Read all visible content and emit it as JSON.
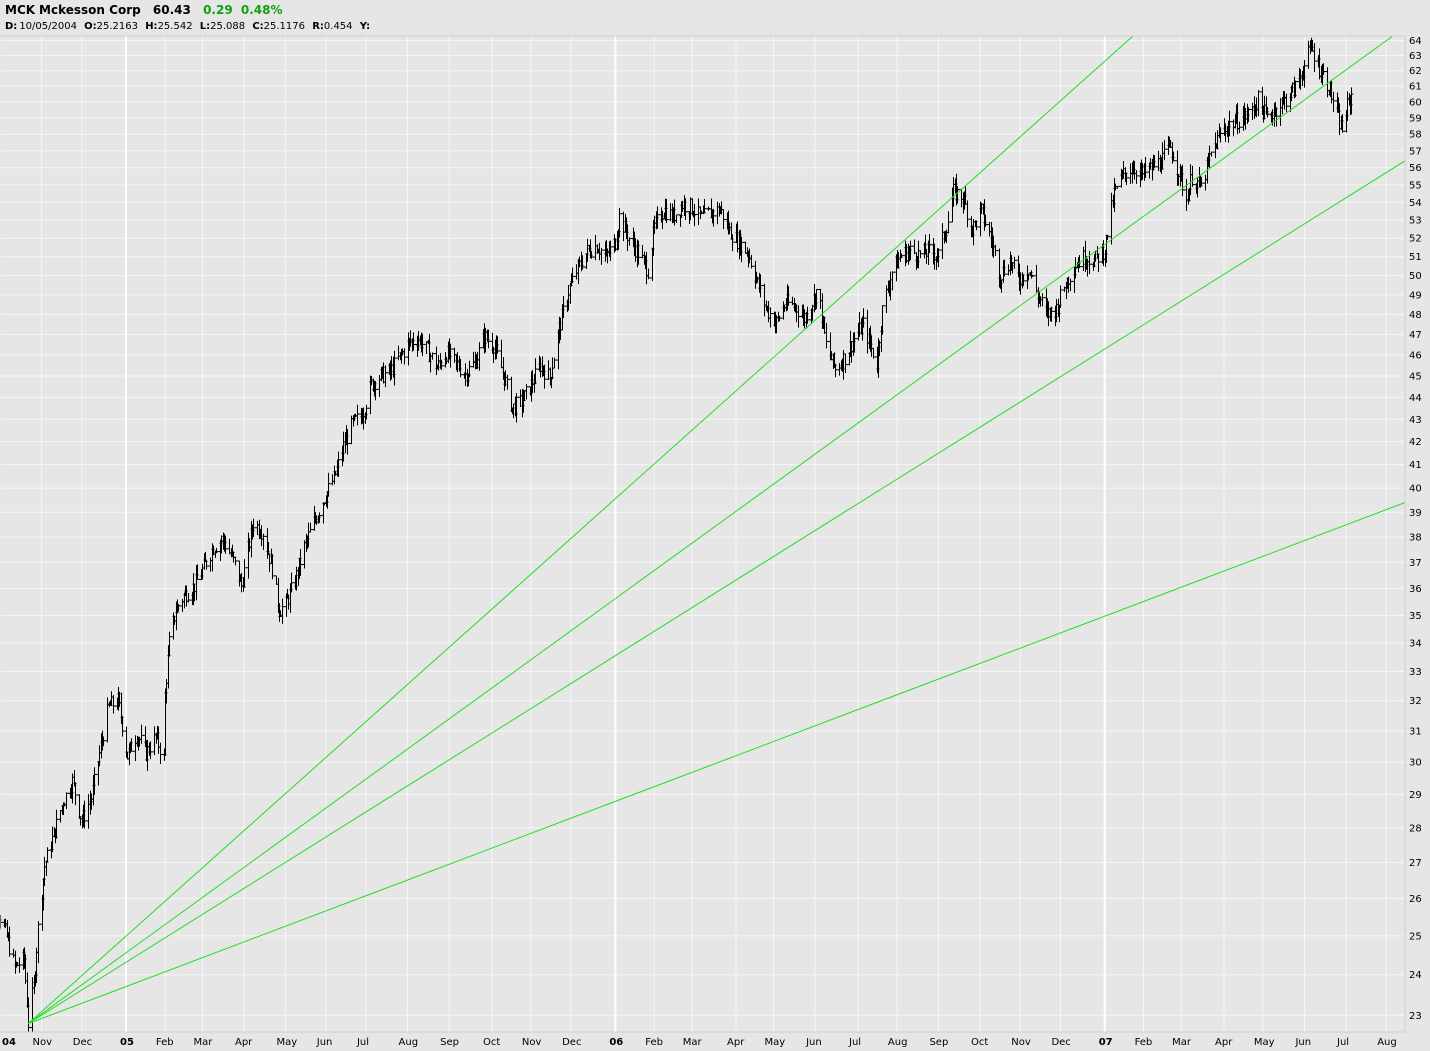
{
  "header": {
    "symbol": "MCK",
    "name": "Mckesson Corp",
    "last": "60.43",
    "change": "0.29",
    "change_pct": "0.48%",
    "change_color": "#12a012",
    "d_label": "D:",
    "date": "10/05/2004",
    "o_label": "O:",
    "open": "25.2163",
    "h_label": "H:",
    "high": "25.542",
    "l_label": "L:",
    "low": "25.088",
    "c_label": "C:",
    "close": "25.1176",
    "r_label": "R:",
    "range": "0.454",
    "y_label": "Y:"
  },
  "chart_data": {
    "type": "bar",
    "style": "ohlc",
    "log_scale": true,
    "ylim": [
      22.6,
      64.3
    ],
    "xlim": [
      "2004-10-01",
      "2007-08-15"
    ],
    "y_ticks": [
      23,
      24,
      25,
      26,
      27,
      28,
      29,
      30,
      31,
      32,
      33,
      34,
      35,
      36,
      37,
      38,
      39,
      40,
      41,
      42,
      43,
      44,
      45,
      46,
      47,
      48,
      49,
      50,
      51,
      52,
      53,
      54,
      55,
      56,
      57,
      58,
      59,
      60,
      61,
      62,
      63,
      64
    ],
    "x_ticks": [
      {
        "label": "04",
        "date": "2004-10-01",
        "year": true
      },
      {
        "label": "Nov",
        "date": "2004-11-01"
      },
      {
        "label": "Dec",
        "date": "2004-12-01"
      },
      {
        "label": "05",
        "date": "2005-01-03",
        "year": true
      },
      {
        "label": "Feb",
        "date": "2005-02-01"
      },
      {
        "label": "Mar",
        "date": "2005-03-01"
      },
      {
        "label": "Apr",
        "date": "2005-04-01"
      },
      {
        "label": "May",
        "date": "2005-05-02"
      },
      {
        "label": "Jun",
        "date": "2005-06-01"
      },
      {
        "label": "Jul",
        "date": "2005-07-01"
      },
      {
        "label": "Aug",
        "date": "2005-08-01"
      },
      {
        "label": "Sep",
        "date": "2005-09-01"
      },
      {
        "label": "Oct",
        "date": "2005-10-03"
      },
      {
        "label": "Nov",
        "date": "2005-11-01"
      },
      {
        "label": "Dec",
        "date": "2005-12-01"
      },
      {
        "label": "06",
        "date": "2006-01-03",
        "year": true
      },
      {
        "label": "Feb",
        "date": "2006-02-01"
      },
      {
        "label": "Mar",
        "date": "2006-03-01"
      },
      {
        "label": "Apr",
        "date": "2006-04-03"
      },
      {
        "label": "May",
        "date": "2006-05-01"
      },
      {
        "label": "Jun",
        "date": "2006-06-01"
      },
      {
        "label": "Jul",
        "date": "2006-07-03"
      },
      {
        "label": "Aug",
        "date": "2006-08-01"
      },
      {
        "label": "Sep",
        "date": "2006-09-01"
      },
      {
        "label": "Oct",
        "date": "2006-10-02"
      },
      {
        "label": "Nov",
        "date": "2006-11-01"
      },
      {
        "label": "Dec",
        "date": "2006-12-01"
      },
      {
        "label": "07",
        "date": "2007-01-03",
        "year": true
      },
      {
        "label": "Feb",
        "date": "2007-02-01"
      },
      {
        "label": "Mar",
        "date": "2007-03-01"
      },
      {
        "label": "Apr",
        "date": "2007-04-02"
      },
      {
        "label": "May",
        "date": "2007-05-01"
      },
      {
        "label": "Jun",
        "date": "2007-06-01"
      },
      {
        "label": "Jul",
        "date": "2007-07-02"
      },
      {
        "label": "Aug",
        "date": "2007-08-01"
      }
    ],
    "price_path": [
      [
        "2004-09-20",
        26.5
      ],
      [
        "2004-09-28",
        25.8
      ],
      [
        "2004-10-05",
        25.1
      ],
      [
        "2004-10-12",
        24.2
      ],
      [
        "2004-10-19",
        24.4
      ],
      [
        "2004-10-22",
        22.8
      ],
      [
        "2004-10-26",
        23.7
      ],
      [
        "2004-10-29",
        25.2
      ],
      [
        "2004-11-03",
        26.9
      ],
      [
        "2004-11-10",
        27.8
      ],
      [
        "2004-11-17",
        28.8
      ],
      [
        "2004-11-24",
        29.4
      ],
      [
        "2004-12-01",
        28.2
      ],
      [
        "2004-12-08",
        28.9
      ],
      [
        "2004-12-15",
        30.5
      ],
      [
        "2004-12-21",
        31.8
      ],
      [
        "2004-12-28",
        32.0
      ],
      [
        "2005-01-04",
        30.2
      ],
      [
        "2005-01-11",
        30.9
      ],
      [
        "2005-01-18",
        30.3
      ],
      [
        "2005-01-25",
        30.8
      ],
      [
        "2005-01-31",
        30.1
      ],
      [
        "2005-02-01",
        32.2
      ],
      [
        "2005-02-04",
        34.0
      ],
      [
        "2005-02-09",
        35.2
      ],
      [
        "2005-02-16",
        35.8
      ],
      [
        "2005-02-23",
        36.1
      ],
      [
        "2005-03-02",
        36.8
      ],
      [
        "2005-03-09",
        37.6
      ],
      [
        "2005-03-16",
        37.9
      ],
      [
        "2005-03-23",
        37.2
      ],
      [
        "2005-03-30",
        36.1
      ],
      [
        "2005-04-04",
        37.5
      ],
      [
        "2005-04-08",
        38.6
      ],
      [
        "2005-04-15",
        38.2
      ],
      [
        "2005-04-22",
        36.8
      ],
      [
        "2005-04-27",
        35.2
      ],
      [
        "2005-05-02",
        35.4
      ],
      [
        "2005-05-09",
        36.3
      ],
      [
        "2005-05-16",
        37.6
      ],
      [
        "2005-05-23",
        38.6
      ],
      [
        "2005-05-31",
        39.6
      ],
      [
        "2005-06-07",
        40.4
      ],
      [
        "2005-06-14",
        41.8
      ],
      [
        "2005-06-21",
        42.8
      ],
      [
        "2005-06-28",
        43.2
      ],
      [
        "2005-07-05",
        44.6
      ],
      [
        "2005-07-12",
        45.0
      ],
      [
        "2005-07-19",
        45.2
      ],
      [
        "2005-07-26",
        45.9
      ],
      [
        "2005-08-02",
        46.6
      ],
      [
        "2005-08-09",
        46.8
      ],
      [
        "2005-08-16",
        46.2
      ],
      [
        "2005-08-23",
        45.4
      ],
      [
        "2005-08-30",
        46.1
      ],
      [
        "2005-09-06",
        45.6
      ],
      [
        "2005-09-13",
        45.1
      ],
      [
        "2005-09-20",
        45.6
      ],
      [
        "2005-09-27",
        46.9
      ],
      [
        "2005-10-04",
        46.5
      ],
      [
        "2005-10-11",
        45.2
      ],
      [
        "2005-10-18",
        43.5
      ],
      [
        "2005-10-25",
        43.8
      ],
      [
        "2005-11-01",
        44.6
      ],
      [
        "2005-11-08",
        45.5
      ],
      [
        "2005-11-15",
        44.9
      ],
      [
        "2005-11-22",
        47.3
      ],
      [
        "2005-11-29",
        49.2
      ],
      [
        "2005-12-06",
        50.4
      ],
      [
        "2005-12-13",
        51.3
      ],
      [
        "2005-12-20",
        51.6
      ],
      [
        "2005-12-27",
        51.0
      ],
      [
        "2006-01-03",
        51.8
      ],
      [
        "2006-01-06",
        53.2
      ],
      [
        "2006-01-13",
        52.0
      ],
      [
        "2006-01-20",
        51.2
      ],
      [
        "2006-01-27",
        50.3
      ],
      [
        "2006-02-01",
        52.6
      ],
      [
        "2006-02-08",
        53.6
      ],
      [
        "2006-02-15",
        53.2
      ],
      [
        "2006-02-22",
        53.9
      ],
      [
        "2006-03-01",
        53.7
      ],
      [
        "2006-03-08",
        53.1
      ],
      [
        "2006-03-15",
        53.4
      ],
      [
        "2006-03-22",
        53.6
      ],
      [
        "2006-03-29",
        52.4
      ],
      [
        "2006-04-05",
        51.8
      ],
      [
        "2006-04-12",
        51.2
      ],
      [
        "2006-04-19",
        49.6
      ],
      [
        "2006-04-26",
        48.2
      ],
      [
        "2006-05-03",
        47.6
      ],
      [
        "2006-05-10",
        48.6
      ],
      [
        "2006-05-17",
        48.4
      ],
      [
        "2006-05-24",
        47.8
      ],
      [
        "2006-05-31",
        48.8
      ],
      [
        "2006-06-03",
        49.4
      ],
      [
        "2006-06-09",
        46.5
      ],
      [
        "2006-06-16",
        45.3
      ],
      [
        "2006-06-23",
        45.9
      ],
      [
        "2006-06-30",
        46.8
      ],
      [
        "2006-07-07",
        47.5
      ],
      [
        "2006-07-14",
        46.1
      ],
      [
        "2006-07-17",
        45.6
      ],
      [
        "2006-07-21",
        48.2
      ],
      [
        "2006-07-28",
        50.2
      ],
      [
        "2006-08-04",
        51.1
      ],
      [
        "2006-08-11",
        51.3
      ],
      [
        "2006-08-18",
        51.1
      ],
      [
        "2006-08-25",
        51.3
      ],
      [
        "2006-09-01",
        51.1
      ],
      [
        "2006-09-08",
        53.0
      ],
      [
        "2006-09-12",
        54.6
      ],
      [
        "2006-09-19",
        54.3
      ],
      [
        "2006-09-26",
        52.5
      ],
      [
        "2006-10-03",
        53.5
      ],
      [
        "2006-10-10",
        52.0
      ],
      [
        "2006-10-17",
        50.0
      ],
      [
        "2006-10-24",
        50.8
      ],
      [
        "2006-10-31",
        49.8
      ],
      [
        "2006-11-07",
        50.4
      ],
      [
        "2006-11-14",
        49.0
      ],
      [
        "2006-11-21",
        48.0
      ],
      [
        "2006-11-28",
        48.3
      ],
      [
        "2006-12-05",
        49.6
      ],
      [
        "2006-12-12",
        50.6
      ],
      [
        "2006-12-19",
        51.0
      ],
      [
        "2006-12-26",
        50.8
      ],
      [
        "2007-01-03",
        51.4
      ],
      [
        "2007-01-10",
        54.5
      ],
      [
        "2007-01-17",
        55.6
      ],
      [
        "2007-01-24",
        56.0
      ],
      [
        "2007-01-31",
        55.6
      ],
      [
        "2007-02-07",
        56.0
      ],
      [
        "2007-02-14",
        56.4
      ],
      [
        "2007-02-21",
        57.2
      ],
      [
        "2007-02-28",
        55.6
      ],
      [
        "2007-03-05",
        54.2
      ],
      [
        "2007-03-09",
        55.5
      ],
      [
        "2007-03-16",
        54.8
      ],
      [
        "2007-03-23",
        56.8
      ],
      [
        "2007-03-30",
        58.0
      ],
      [
        "2007-04-06",
        58.6
      ],
      [
        "2007-04-13",
        58.9
      ],
      [
        "2007-04-20",
        59.2
      ],
      [
        "2007-04-27",
        60.1
      ],
      [
        "2007-05-04",
        59.0
      ],
      [
        "2007-05-11",
        59.6
      ],
      [
        "2007-05-18",
        60.2
      ],
      [
        "2007-05-25",
        60.9
      ],
      [
        "2007-06-01",
        62.3
      ],
      [
        "2007-06-06",
        63.5
      ],
      [
        "2007-06-12",
        62.2
      ],
      [
        "2007-06-19",
        61.0
      ],
      [
        "2007-06-26",
        58.9
      ],
      [
        "2007-06-29",
        58.3
      ],
      [
        "2007-07-03",
        59.7
      ],
      [
        "2007-07-06",
        60.4
      ]
    ],
    "fan_lines": {
      "color": "#22dd22",
      "origin": {
        "date": "2004-10-22",
        "price": 22.8
      },
      "through_price_at_2007-08-15": [
        83.0,
        64.9,
        56.4,
        39.4
      ]
    }
  }
}
